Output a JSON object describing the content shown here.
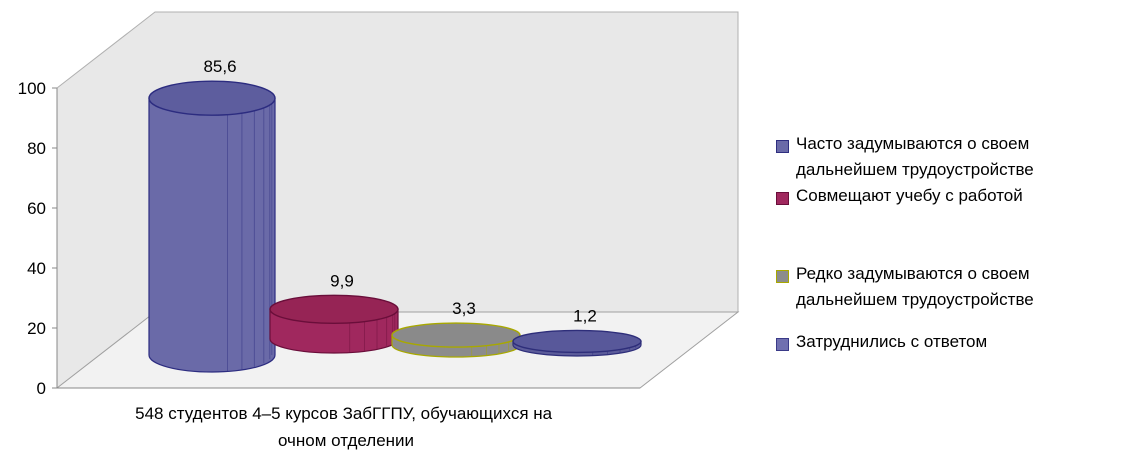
{
  "chart_data": {
    "type": "bar",
    "style": "3d-cylinder",
    "categories": [
      "548 студентов 4–5 курсов ЗабГГПУ, обучающихся на очном отделении"
    ],
    "series": [
      {
        "name": "Часто задумываются о своем дальнейшем трудоустройстве",
        "values": [
          85.6
        ],
        "label": "85,6",
        "color": "#6666a8"
      },
      {
        "name": "Совмещают учебу с работой",
        "values": [
          9.9
        ],
        "label": "9,9",
        "color": "#9e2a62"
      },
      {
        "name": "Редко задумываются о своем дальнейшем трудоустройстве",
        "values": [
          3.3
        ],
        "label": "3,3",
        "color": "#8a8a8a"
      },
      {
        "name": "Затруднились с ответом",
        "values": [
          1.2
        ],
        "label": "1,2",
        "color": "#5d5d9c"
      }
    ],
    "ylim": [
      0,
      100
    ],
    "yticks": [
      "0",
      "20",
      "40",
      "60",
      "80",
      "100"
    ],
    "grid": false,
    "legend_position": "right"
  },
  "legend_colors": {
    "s0": {
      "fill": "#6a6aa8",
      "stroke": "#2e2e80"
    },
    "s1": {
      "fill": "#a0285e",
      "stroke": "#6a0e3a"
    },
    "s2": {
      "fill": "#8c8c8c",
      "stroke": "#a8a800"
    },
    "s3": {
      "fill": "#7070b0",
      "stroke": "#3a3a88"
    }
  }
}
